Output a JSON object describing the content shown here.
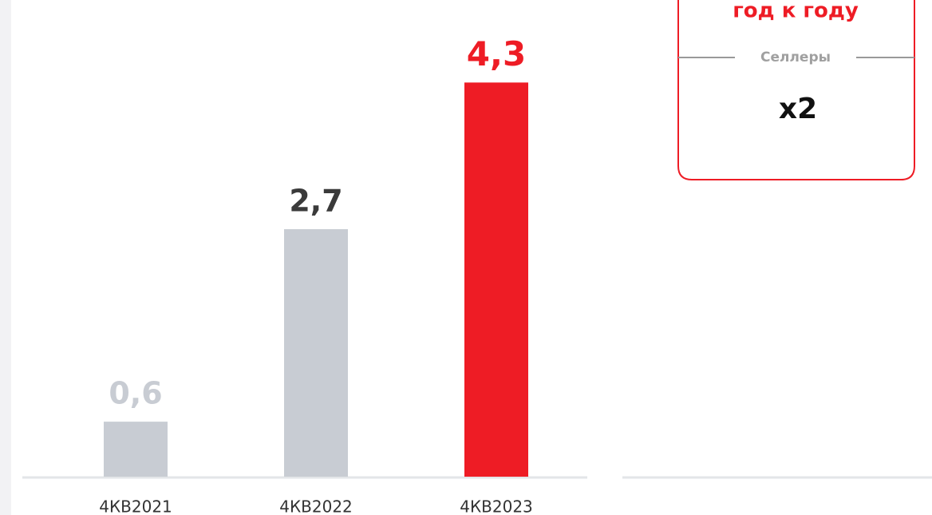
{
  "chart_data": {
    "type": "bar",
    "categories": [
      "4КВ2021",
      "4КВ2022",
      "4КВ2023"
    ],
    "values": [
      0.6,
      2.7,
      4.3
    ],
    "value_labels": [
      "0,6",
      "2,7",
      "4,3"
    ],
    "colors": [
      "#c8ccd3",
      "#c8ccd3",
      "#ee1c25"
    ],
    "label_colors": [
      "#c8ccd3",
      "#3a3a3a",
      "#ee1c25"
    ],
    "ylim": [
      0,
      5
    ],
    "annotation": {
      "title": "год к году",
      "label": "Селлеры",
      "value": "x2"
    }
  }
}
